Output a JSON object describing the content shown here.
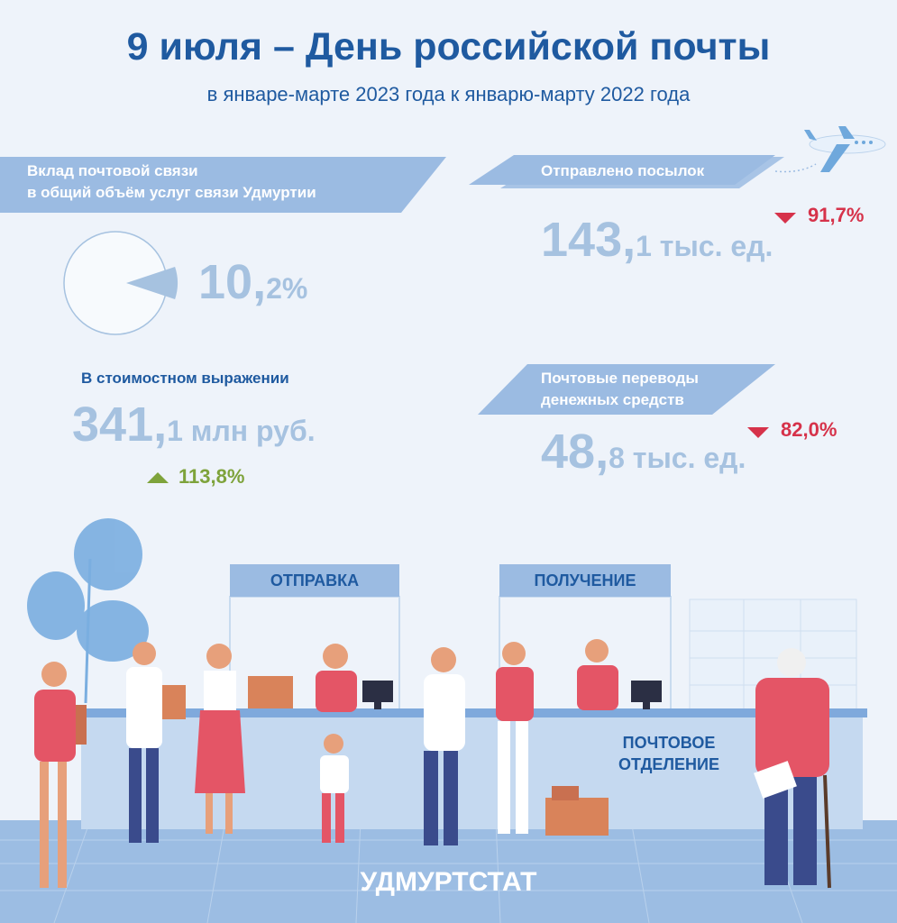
{
  "header": {
    "title": "9 июля – День российской почты",
    "subtitle": "в январе-марте 2023 года к январю-марту 2022 года"
  },
  "share": {
    "label_line1": "Вклад почтовой связи",
    "label_line2": "в общий объём услуг связи Удмуртии",
    "value_int": "10,",
    "value_frac": "2%",
    "share_fraction": 0.102
  },
  "value_cost": {
    "label": "В стоимостном выражении",
    "value_int": "341,",
    "value_rest": "1 млн руб.",
    "change": "113,8%",
    "direction": "up"
  },
  "parcels": {
    "label": "Отправлено посылок",
    "value_int": "143,",
    "value_rest": "1 тыс. ед.",
    "change": "91,7%",
    "direction": "down"
  },
  "transfers": {
    "label_line1": "Почтовые переводы",
    "label_line2": "денежных средств",
    "value_int": "48,",
    "value_rest": "8 тыс. ед.",
    "change": "82,0%",
    "direction": "down"
  },
  "scene": {
    "sign_send": "ОТПРАВКА",
    "sign_receive": "ПОЛУЧЕНИЕ",
    "office_line1": "ПОЧТОВОЕ",
    "office_line2": "ОТДЕЛЕНИЕ",
    "footer": "УДМУРТСТАТ"
  },
  "colors": {
    "title": "#1f5aa0",
    "value": "#a6c2e0",
    "banner": "#9bbbe2",
    "down": "#d6324a",
    "up": "#7ea33b"
  }
}
